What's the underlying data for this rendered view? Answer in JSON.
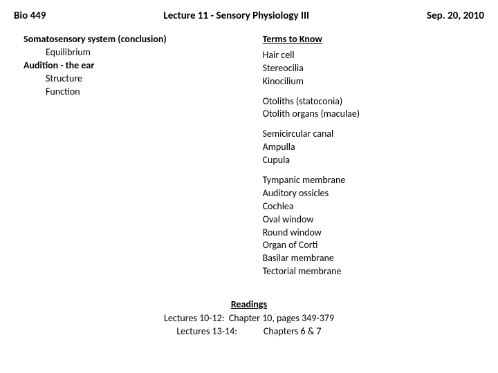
{
  "header": {
    "course": "Bio 449",
    "title": "Lecture 11 - Sensory Physiology III",
    "date": "Sep. 20, 2010"
  },
  "outline": {
    "line1": "Somatosensory system (conclusion)",
    "line2": "Equilibrium",
    "line3": "Audition - the ear",
    "line4": "Structure",
    "line5": "Function"
  },
  "terms": {
    "heading": "Terms to Know",
    "g1": {
      "t1": "Hair cell",
      "t2": "Stereocilia",
      "t3": "Kinocilium"
    },
    "g2": {
      "t1": "Otoliths (statoconia)",
      "t2": "Otolith organs (maculae)"
    },
    "g3": {
      "t1": "Semicircular canal",
      "t2": "Ampulla",
      "t3": "Cupula"
    },
    "g4": {
      "t1": "Tympanic membrane",
      "t2": "Auditory ossicles",
      "t3": "Cochlea",
      "t4": "Oval window",
      "t5": "Round window",
      "t6": "Organ of Corti",
      "t7": "Basilar membrane",
      "t8": "Tectorial membrane"
    }
  },
  "readings": {
    "heading": "Readings",
    "row1": "Lectures 10-12:  Chapter 10, pages 349-379",
    "row2": "Lectures 13-14:            Chapters 6 & 7"
  },
  "style": {
    "font_family": "Calibri",
    "background_color": "#ffffff",
    "text_color": "#000000",
    "header_fontsize": 15,
    "body_fontsize": 14,
    "header_fontweight": "bold"
  }
}
